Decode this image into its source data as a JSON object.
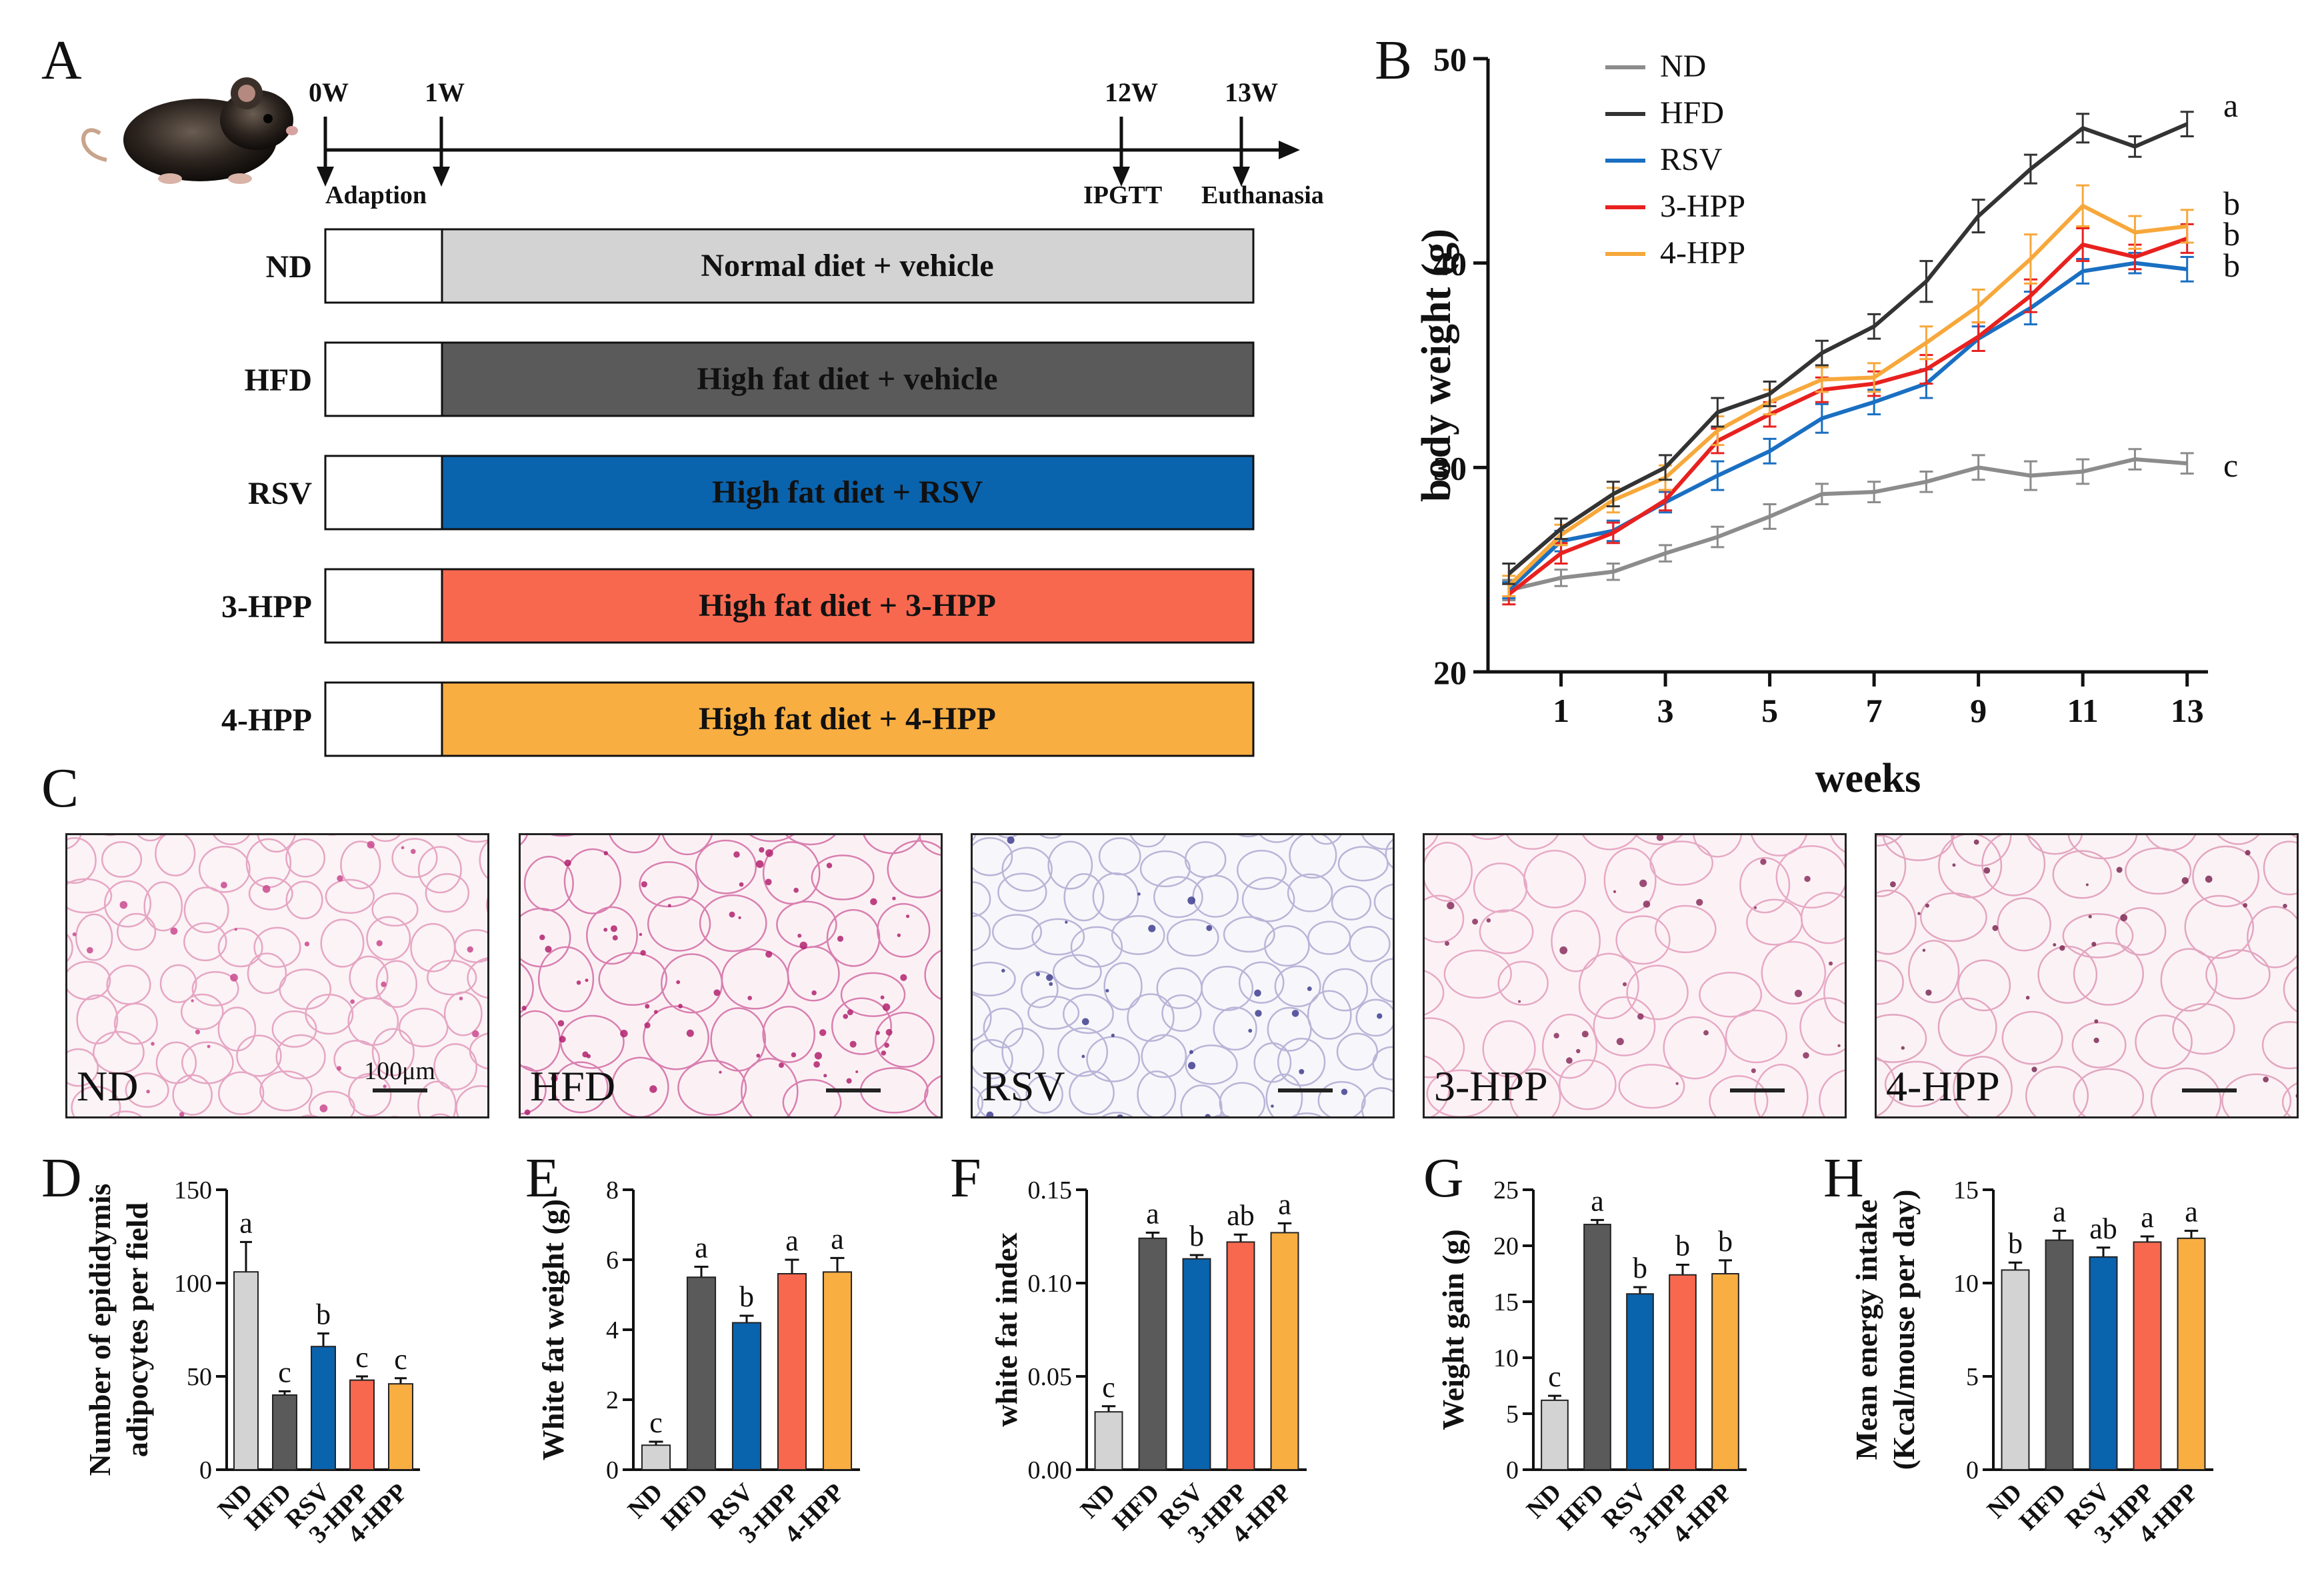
{
  "panelA": {
    "letter": "A",
    "timepoints": [
      {
        "label": "0W",
        "note": "Adaption"
      },
      {
        "label": "1W",
        "note": ""
      },
      {
        "label": "12W",
        "note": "IPGTT"
      },
      {
        "label": "13W",
        "note": "Euthanasia"
      }
    ],
    "groups": [
      {
        "name": "ND",
        "treatment": "Normal diet + vehicle",
        "color": "#d3d3d3"
      },
      {
        "name": "HFD",
        "treatment": "High fat diet + vehicle",
        "color": "#5a5a5a"
      },
      {
        "name": "RSV",
        "treatment": "High fat diet + RSV",
        "color": "#0a63ad"
      },
      {
        "name": "3-HPP",
        "treatment": "High fat diet + 3-HPP",
        "color": "#f8684f"
      },
      {
        "name": "4-HPP",
        "treatment": "High fat diet + 4-HPP",
        "color": "#f9ae42"
      }
    ]
  },
  "panelC": {
    "letter": "C",
    "images": [
      {
        "label": "ND",
        "scale_text": "100μm"
      },
      {
        "label": "HFD",
        "scale_text": ""
      },
      {
        "label": "RSV",
        "scale_text": ""
      },
      {
        "label": "3-HPP",
        "scale_text": ""
      },
      {
        "label": "4-HPP",
        "scale_text": ""
      }
    ]
  },
  "chart_data": [
    {
      "id": "B",
      "type": "line",
      "letter": "B",
      "xlabel": "weeks",
      "ylabel": "body weight (g)",
      "x": [
        0,
        1,
        2,
        3,
        4,
        5,
        6,
        7,
        8,
        9,
        10,
        11,
        12,
        13
      ],
      "xticks": [
        "1",
        "3",
        "5",
        "7",
        "9",
        "11",
        "13"
      ],
      "xtick_values": [
        1,
        3,
        5,
        7,
        9,
        11,
        13
      ],
      "ylim": [
        20,
        50
      ],
      "yticks": [
        "20",
        "30",
        "40",
        "50"
      ],
      "series": [
        {
          "name": "ND",
          "color": "#8c8c8c",
          "values": [
            24.0,
            24.6,
            24.9,
            25.8,
            26.6,
            27.6,
            28.7,
            28.8,
            29.3,
            30.0,
            29.6,
            29.8,
            30.4,
            30.2
          ],
          "err": [
            0.5,
            0.4,
            0.4,
            0.4,
            0.5,
            0.6,
            0.5,
            0.5,
            0.5,
            0.6,
            0.7,
            0.6,
            0.5,
            0.5
          ],
          "letter": "c"
        },
        {
          "name": "HFD",
          "color": "#333333",
          "values": [
            24.8,
            27.0,
            28.7,
            30.0,
            32.7,
            33.6,
            35.6,
            36.9,
            39.1,
            42.3,
            44.6,
            46.6,
            45.7,
            46.8
          ],
          "err": [
            0.5,
            0.5,
            0.6,
            0.6,
            0.7,
            0.6,
            0.6,
            0.6,
            1.0,
            0.8,
            0.7,
            0.7,
            0.5,
            0.6
          ],
          "letter": "a"
        },
        {
          "name": "RSV",
          "color": "#1a6fc2",
          "values": [
            24.0,
            26.4,
            26.9,
            28.3,
            29.6,
            30.8,
            32.4,
            33.2,
            34.1,
            36.3,
            37.8,
            39.6,
            40.0,
            39.7
          ],
          "err": [
            0.4,
            0.5,
            0.5,
            0.5,
            0.7,
            0.6,
            0.7,
            0.6,
            0.7,
            0.6,
            0.8,
            0.6,
            0.5,
            0.6
          ],
          "letter": "b"
        },
        {
          "name": "3-HPP",
          "color": "#e8211f",
          "values": [
            23.8,
            25.8,
            26.8,
            28.4,
            31.3,
            32.6,
            33.8,
            34.1,
            34.8,
            36.4,
            38.4,
            40.9,
            40.3,
            41.2
          ],
          "err": [
            0.5,
            0.5,
            0.5,
            0.5,
            0.6,
            0.6,
            0.6,
            0.6,
            0.7,
            0.7,
            0.8,
            0.8,
            0.6,
            0.7
          ],
          "letter": "b"
        },
        {
          "name": "4-HPP",
          "color": "#f7a83b",
          "values": [
            24.2,
            26.7,
            28.4,
            29.5,
            31.8,
            33.2,
            34.3,
            34.4,
            36.1,
            37.9,
            40.2,
            42.8,
            41.5,
            41.8
          ],
          "err": [
            0.5,
            0.5,
            0.6,
            0.6,
            0.7,
            0.6,
            0.6,
            0.7,
            0.8,
            0.8,
            1.2,
            1.0,
            0.8,
            0.8
          ],
          "letter": "b"
        }
      ]
    },
    {
      "id": "D",
      "type": "bar",
      "letter": "D",
      "ylabel_lines": [
        "Number of epididymis",
        "adipocytes per field"
      ],
      "categories": [
        "ND",
        "HFD",
        "RSV",
        "3-HPP",
        "4-HPP"
      ],
      "values": [
        106,
        40,
        66,
        48,
        46
      ],
      "err": [
        16,
        2,
        7,
        2,
        3
      ],
      "letters": [
        "a",
        "c",
        "b",
        "c",
        "c"
      ],
      "ylim": [
        0,
        150
      ],
      "yticks": [
        "0",
        "50",
        "100",
        "150"
      ],
      "colors": [
        "#d3d3d3",
        "#5a5a5a",
        "#0a63ad",
        "#f8684f",
        "#f9ae42"
      ]
    },
    {
      "id": "E",
      "type": "bar",
      "letter": "E",
      "ylabel_lines": [
        "White fat weight (g)"
      ],
      "categories": [
        "ND",
        "HFD",
        "RSV",
        "3-HPP",
        "4-HPP"
      ],
      "values": [
        0.7,
        5.5,
        4.2,
        5.6,
        5.65
      ],
      "err": [
        0.1,
        0.3,
        0.2,
        0.4,
        0.4
      ],
      "letters": [
        "c",
        "a",
        "b",
        "a",
        "a"
      ],
      "ylim": [
        0,
        8
      ],
      "yticks": [
        "0",
        "2",
        "4",
        "6",
        "8"
      ],
      "colors": [
        "#d3d3d3",
        "#5a5a5a",
        "#0a63ad",
        "#f8684f",
        "#f9ae42"
      ]
    },
    {
      "id": "F",
      "type": "bar",
      "letter": "F",
      "ylabel_lines": [
        "white fat index"
      ],
      "categories": [
        "ND",
        "HFD",
        "RSV",
        "3-HPP",
        "4-HPP"
      ],
      "values": [
        0.031,
        0.124,
        0.113,
        0.122,
        0.127
      ],
      "err": [
        0.003,
        0.003,
        0.002,
        0.004,
        0.005
      ],
      "letters": [
        "c",
        "a",
        "b",
        "ab",
        "a"
      ],
      "ylim": [
        0,
        0.15
      ],
      "yticks": [
        "0.00",
        "0.05",
        "0.10",
        "0.15"
      ],
      "colors": [
        "#d3d3d3",
        "#5a5a5a",
        "#0a63ad",
        "#f8684f",
        "#f9ae42"
      ]
    },
    {
      "id": "G",
      "type": "bar",
      "letter": "G",
      "ylabel_lines": [
        "Weight gain (g)"
      ],
      "categories": [
        "ND",
        "HFD",
        "RSV",
        "3-HPP",
        "4-HPP"
      ],
      "values": [
        6.2,
        21.9,
        15.7,
        17.4,
        17.5
      ],
      "err": [
        0.4,
        0.4,
        0.6,
        0.9,
        1.2
      ],
      "letters": [
        "c",
        "a",
        "b",
        "b",
        "b"
      ],
      "ylim": [
        0,
        25
      ],
      "yticks": [
        "0",
        "5",
        "10",
        "15",
        "20",
        "25"
      ],
      "colors": [
        "#d3d3d3",
        "#5a5a5a",
        "#0a63ad",
        "#f8684f",
        "#f9ae42"
      ]
    },
    {
      "id": "H",
      "type": "bar",
      "letter": "H",
      "ylabel_lines": [
        "Mean energy intake",
        "(Kcal/mouse per day)"
      ],
      "categories": [
        "ND",
        "HFD",
        "RSV",
        "3-HPP",
        "4-HPP"
      ],
      "values": [
        10.7,
        12.3,
        11.4,
        12.2,
        12.4
      ],
      "err": [
        0.4,
        0.5,
        0.5,
        0.3,
        0.4
      ],
      "letters": [
        "b",
        "a",
        "ab",
        "a",
        "a"
      ],
      "ylim": [
        0,
        15
      ],
      "yticks": [
        "0",
        "5",
        "10",
        "15"
      ],
      "colors": [
        "#d3d3d3",
        "#5a5a5a",
        "#0a63ad",
        "#f8684f",
        "#f9ae42"
      ]
    }
  ]
}
